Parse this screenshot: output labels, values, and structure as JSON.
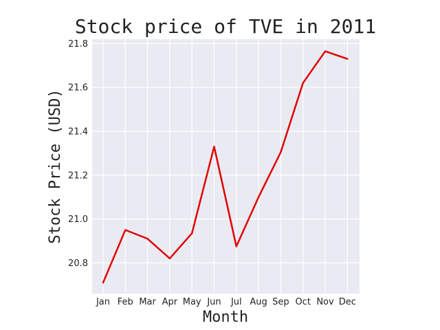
{
  "chart_data": {
    "type": "line",
    "title": "Stock price of TVE in 2011",
    "xlabel": "Month",
    "ylabel": "Stock Price (USD)",
    "categories": [
      "Jan",
      "Feb",
      "Mar",
      "Apr",
      "May",
      "Jun",
      "Jul",
      "Aug",
      "Sep",
      "Oct",
      "Nov",
      "Dec"
    ],
    "series": [
      {
        "values": [
          20.71,
          20.95,
          20.91,
          20.82,
          20.935,
          21.33,
          20.875,
          21.1,
          21.305,
          21.62,
          21.765,
          21.73
        ],
        "color": "#e00000"
      }
    ],
    "ylim": [
      20.66,
      21.82
    ],
    "yticks": [
      20.8,
      21.0,
      21.2,
      21.4,
      21.6,
      21.8
    ],
    "ytick_labels": [
      "20.8",
      "21.0",
      "21.2",
      "21.4",
      "21.6",
      "21.8"
    ],
    "grid": true,
    "plot_background": "#eaeaf2",
    "grid_color": "#ffffff"
  }
}
